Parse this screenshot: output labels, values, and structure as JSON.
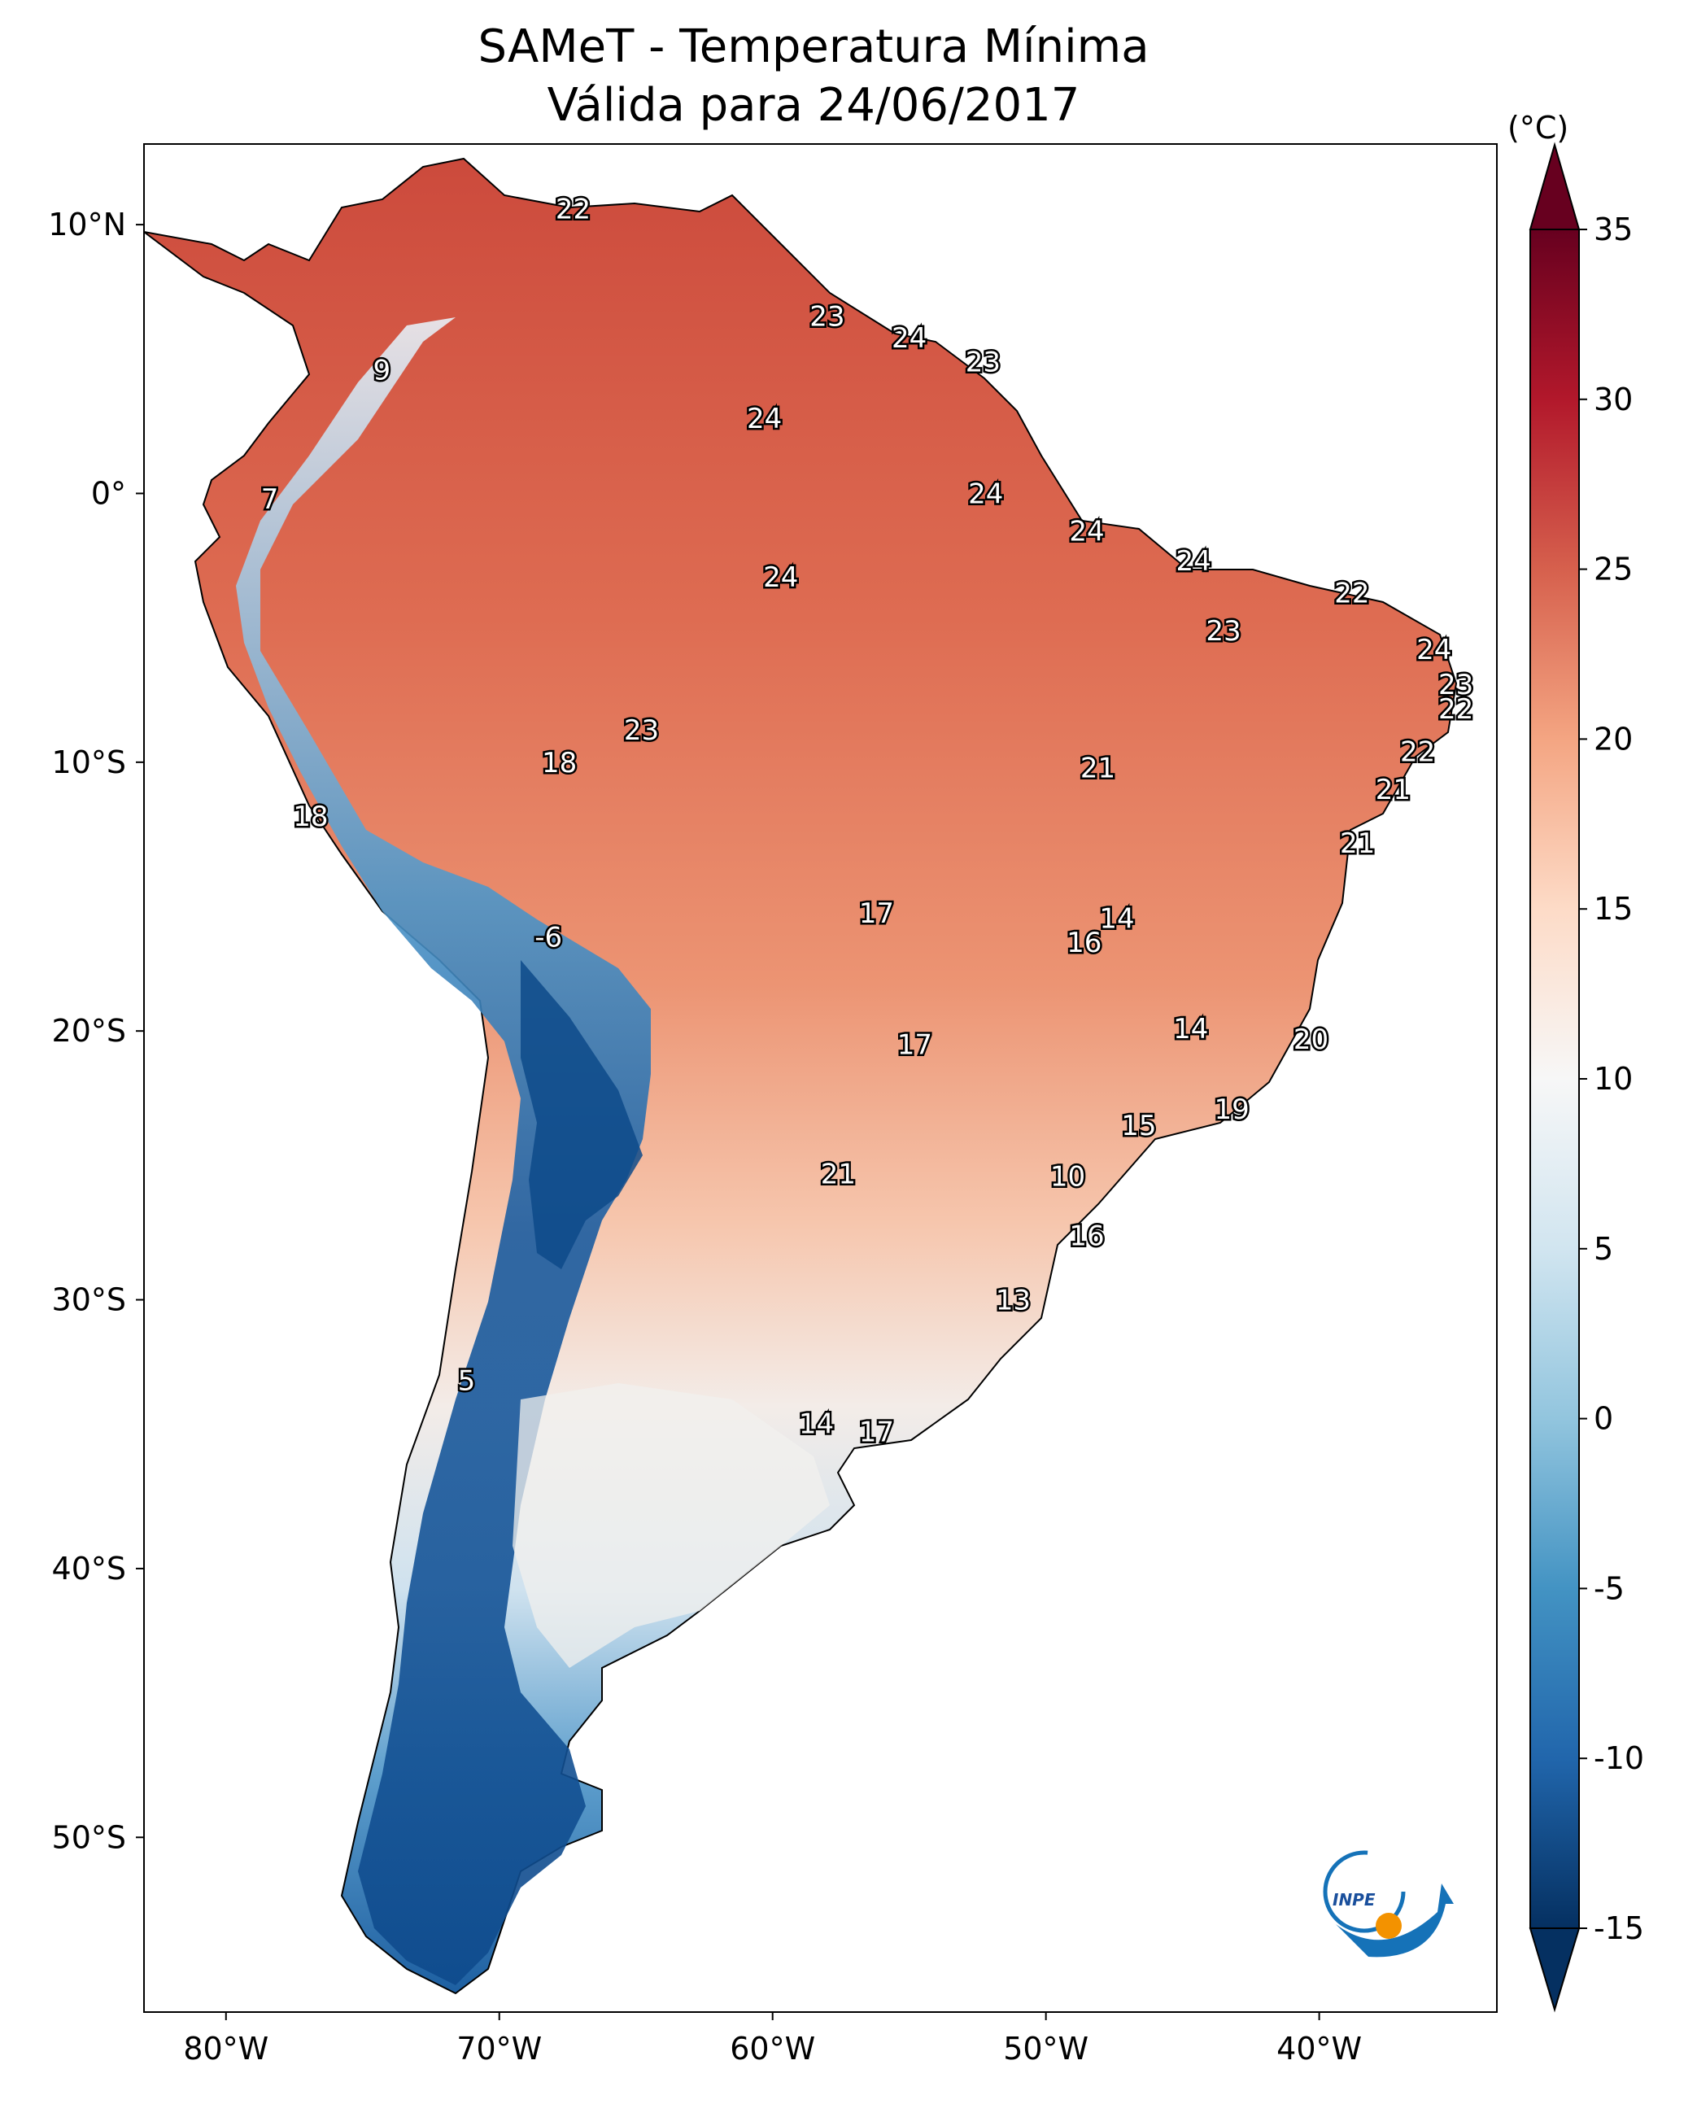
{
  "title": {
    "line1": "SAMeT - Temperatura Mínima",
    "line2": "Válida para 24/06/2017"
  },
  "map": {
    "x_range_deg": [
      -83,
      -33.5
    ],
    "y_range_deg": [
      -56.5,
      13
    ],
    "x_ticks": [
      {
        "value": -80,
        "label": "80°W"
      },
      {
        "value": -70,
        "label": "70°W"
      },
      {
        "value": -60,
        "label": "60°W"
      },
      {
        "value": -50,
        "label": "50°W"
      },
      {
        "value": -40,
        "label": "40°W"
      }
    ],
    "y_ticks": [
      {
        "value": 10,
        "label": "10°N"
      },
      {
        "value": 0,
        "label": "0°"
      },
      {
        "value": -10,
        "label": "10°S"
      },
      {
        "value": -20,
        "label": "20°S"
      },
      {
        "value": -30,
        "label": "30°S"
      },
      {
        "value": -40,
        "label": "40°S"
      },
      {
        "value": -50,
        "label": "50°S"
      }
    ],
    "station_values": [
      {
        "lon": -67.3,
        "lat": 10.6,
        "value": "22"
      },
      {
        "lon": -58.0,
        "lat": 6.6,
        "value": "23"
      },
      {
        "lon": -55.0,
        "lat": 5.8,
        "value": "24"
      },
      {
        "lon": -52.3,
        "lat": 4.9,
        "value": "23"
      },
      {
        "lon": -74.3,
        "lat": 4.6,
        "value": "9"
      },
      {
        "lon": -60.3,
        "lat": 2.8,
        "value": "24"
      },
      {
        "lon": -78.4,
        "lat": -0.2,
        "value": "7"
      },
      {
        "lon": -52.2,
        "lat": 0.0,
        "value": "24"
      },
      {
        "lon": -48.5,
        "lat": -1.4,
        "value": "24"
      },
      {
        "lon": -59.7,
        "lat": -3.1,
        "value": "24"
      },
      {
        "lon": -44.6,
        "lat": -2.5,
        "value": "24"
      },
      {
        "lon": -38.8,
        "lat": -3.7,
        "value": "22"
      },
      {
        "lon": -43.5,
        "lat": -5.1,
        "value": "23"
      },
      {
        "lon": -35.8,
        "lat": -5.8,
        "value": "24"
      },
      {
        "lon": -35.0,
        "lat": -7.1,
        "value": "23"
      },
      {
        "lon": -35.0,
        "lat": -8.0,
        "value": "22"
      },
      {
        "lon": -64.8,
        "lat": -8.8,
        "value": "23"
      },
      {
        "lon": -36.4,
        "lat": -9.6,
        "value": "22"
      },
      {
        "lon": -67.8,
        "lat": -10.0,
        "value": "18"
      },
      {
        "lon": -48.1,
        "lat": -10.2,
        "value": "21"
      },
      {
        "lon": -37.3,
        "lat": -11.0,
        "value": "21"
      },
      {
        "lon": -38.6,
        "lat": -13.0,
        "value": "21"
      },
      {
        "lon": -76.9,
        "lat": -12.0,
        "value": "18"
      },
      {
        "lon": -56.2,
        "lat": -15.6,
        "value": "17"
      },
      {
        "lon": -47.4,
        "lat": -15.8,
        "value": "14"
      },
      {
        "lon": -48.6,
        "lat": -16.7,
        "value": "16"
      },
      {
        "lon": -68.2,
        "lat": -16.5,
        "value": "-6"
      },
      {
        "lon": -44.7,
        "lat": -19.9,
        "value": "14"
      },
      {
        "lon": -40.3,
        "lat": -20.3,
        "value": "20"
      },
      {
        "lon": -54.8,
        "lat": -20.5,
        "value": "17"
      },
      {
        "lon": -43.2,
        "lat": -22.9,
        "value": "19"
      },
      {
        "lon": -46.6,
        "lat": -23.5,
        "value": "15"
      },
      {
        "lon": -57.6,
        "lat": -25.3,
        "value": "21"
      },
      {
        "lon": -49.2,
        "lat": -25.4,
        "value": "10"
      },
      {
        "lon": -48.5,
        "lat": -27.6,
        "value": "16"
      },
      {
        "lon": -51.2,
        "lat": -30.0,
        "value": "13"
      },
      {
        "lon": -71.2,
        "lat": -33.0,
        "value": "5"
      },
      {
        "lon": -58.4,
        "lat": -34.6,
        "value": "14"
      },
      {
        "lon": -56.2,
        "lat": -34.9,
        "value": "17"
      }
    ]
  },
  "colorbar": {
    "unit": "(°C)",
    "min": -15,
    "max": 35,
    "ticks": [
      {
        "value": 35,
        "label": "35"
      },
      {
        "value": 30,
        "label": "30"
      },
      {
        "value": 25,
        "label": "25"
      },
      {
        "value": 20,
        "label": "20"
      },
      {
        "value": 15,
        "label": "15"
      },
      {
        "value": 10,
        "label": "10"
      },
      {
        "value": 5,
        "label": "5"
      },
      {
        "value": 0,
        "label": "0"
      },
      {
        "value": -5,
        "label": "-5"
      },
      {
        "value": -10,
        "label": "-10"
      },
      {
        "value": -15,
        "label": "-15"
      }
    ],
    "colors": [
      "#053061",
      "#2166ac",
      "#4393c3",
      "#92c5de",
      "#d1e5f0",
      "#f7f7f7",
      "#fddbc7",
      "#f4a582",
      "#d6604d",
      "#b2182b",
      "#67001f"
    ]
  },
  "logo": {
    "text": "INPE",
    "colors": {
      "blue": "#1572b8",
      "orange": "#f39200"
    }
  }
}
